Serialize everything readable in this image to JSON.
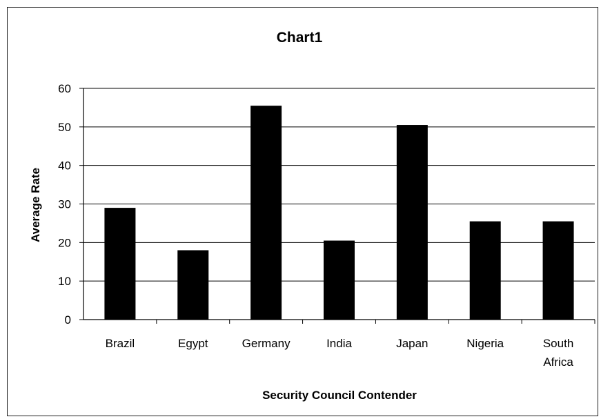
{
  "chart_data": {
    "type": "bar",
    "title": "Chart1",
    "xlabel": "Security Council Contender",
    "ylabel": "Average Rate",
    "categories": [
      "Brazil",
      "Egypt",
      "Germany",
      "India",
      "Japan",
      "Nigeria",
      "South Africa"
    ],
    "category_lines": [
      [
        "Brazil"
      ],
      [
        "Egypt"
      ],
      [
        "Germany"
      ],
      [
        "India"
      ],
      [
        "Japan"
      ],
      [
        "Nigeria"
      ],
      [
        "South",
        "Africa"
      ]
    ],
    "values": [
      29,
      18,
      55.5,
      20.5,
      50.5,
      25.5,
      25.5
    ],
    "ylim": [
      0,
      60
    ],
    "yticks": [
      0,
      10,
      20,
      30,
      40,
      50,
      60
    ],
    "grid": true,
    "legend": "none",
    "bar_color": "#000000",
    "grid_color": "#000000"
  }
}
